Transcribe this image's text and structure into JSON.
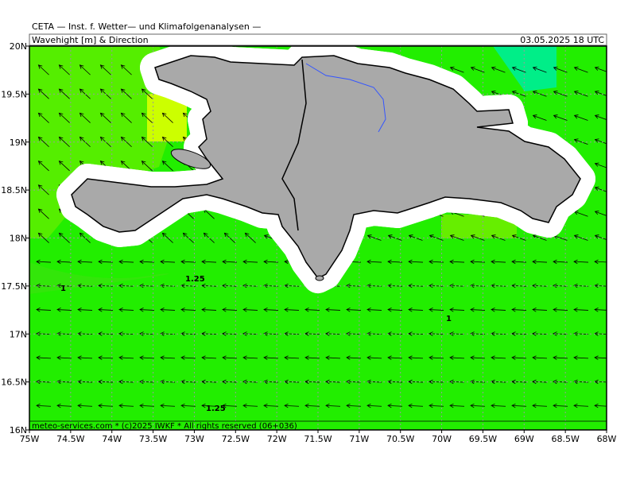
{
  "header": {
    "institute": "CETA — Inst. f. Wetter— und Klimafolgenanalysen —",
    "title": "Wavehight [m] & Direction",
    "valid_time": "03.05.2025 18 UTC"
  },
  "map": {
    "lon_range": [
      -75,
      -68
    ],
    "lat_range": [
      16,
      20
    ],
    "lon_ticks": [
      {
        "value": -75,
        "label": "75W"
      },
      {
        "value": -74.5,
        "label": "74.5W"
      },
      {
        "value": -74,
        "label": "74W"
      },
      {
        "value": -73.5,
        "label": "73.5W"
      },
      {
        "value": -73,
        "label": "73W"
      },
      {
        "value": -72.5,
        "label": "72.5W"
      },
      {
        "value": -72,
        "label": "72W"
      },
      {
        "value": -71.5,
        "label": "71.5W"
      },
      {
        "value": -71,
        "label": "71W"
      },
      {
        "value": -70.5,
        "label": "70.5W"
      },
      {
        "value": -70,
        "label": "70W"
      },
      {
        "value": -69.5,
        "label": "69.5W"
      },
      {
        "value": -69,
        "label": "69W"
      },
      {
        "value": -68.5,
        "label": "68.5W"
      },
      {
        "value": -68,
        "label": "68W"
      }
    ],
    "lat_ticks": [
      {
        "value": 16,
        "label": "16N"
      },
      {
        "value": 16.5,
        "label": "16.5N"
      },
      {
        "value": 17,
        "label": "17N"
      },
      {
        "value": 17.5,
        "label": "17.5N"
      },
      {
        "value": 18,
        "label": "18N"
      },
      {
        "value": 18.5,
        "label": "18.5N"
      },
      {
        "value": 19,
        "label": "19N"
      },
      {
        "value": 19.5,
        "label": "19.5N"
      },
      {
        "value": 20,
        "label": "20N"
      }
    ],
    "contour_labels": [
      "1",
      "1.25",
      "1",
      "1.25"
    ],
    "credit": "meteo-services.com * (c)2025 IWKF * All rights reserved (06+036)"
  }
}
